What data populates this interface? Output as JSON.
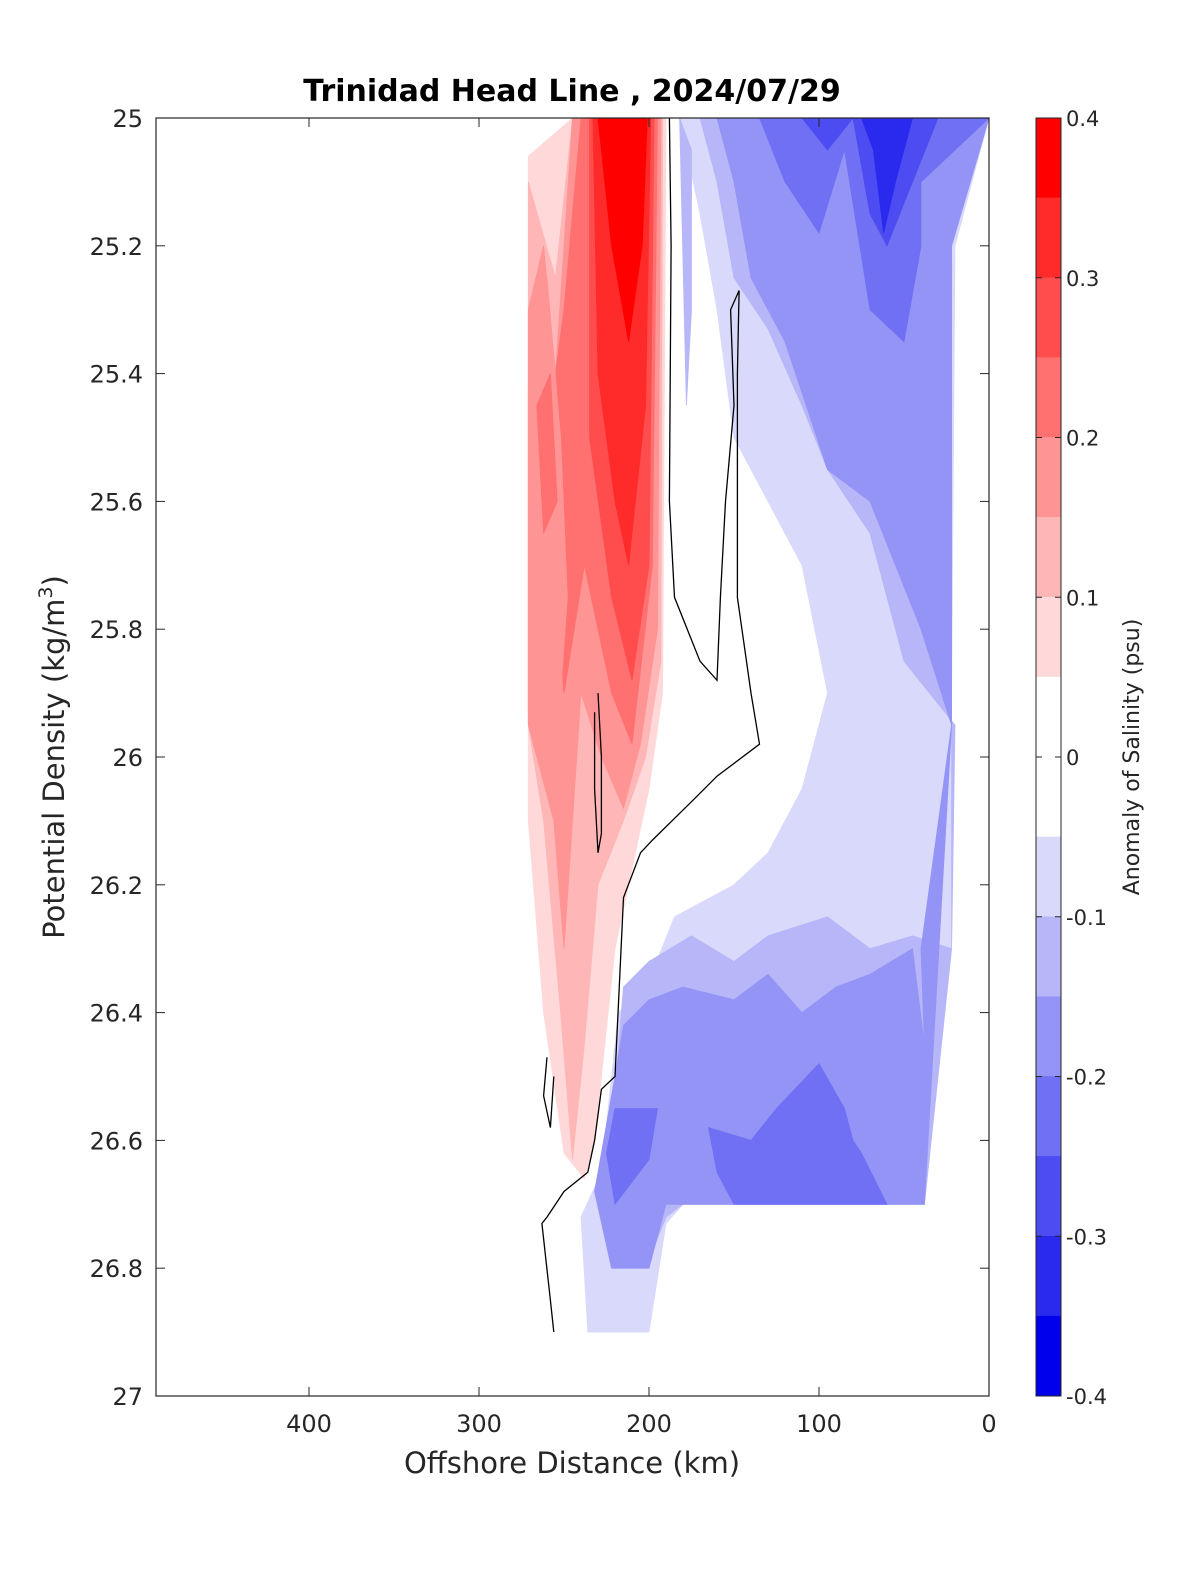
{
  "chart_data": {
    "type": "contour",
    "title": "Trinidad Head Line , 2024/07/29",
    "xlabel": "Offshore Distance (km)",
    "ylabel_main": "Potential Density (kg/m",
    "ylabel_sup": "3",
    "ylabel_close": ")",
    "xlim": [
      490,
      0
    ],
    "ylim": [
      25,
      27
    ],
    "x_reversed": true,
    "y_reversed": true,
    "x_ticks": [
      400,
      300,
      200,
      100,
      0
    ],
    "x_tick_labels": [
      "400",
      "300",
      "200",
      "100",
      "0"
    ],
    "y_ticks": [
      25,
      25.2,
      25.4,
      25.6,
      25.8,
      26,
      26.2,
      26.4,
      26.6,
      26.8,
      27
    ],
    "y_tick_labels": [
      "25",
      "25.2",
      "25.4",
      "25.6",
      "25.8",
      "26",
      "26.2",
      "26.4",
      "26.6",
      "26.8",
      "27"
    ],
    "colorbar": {
      "label": "Anomaly of Salinity (psu)",
      "range": [
        -0.4,
        0.4
      ],
      "tick_values": [
        0.4,
        0.3,
        0.2,
        0.1,
        0,
        -0.1,
        -0.2,
        -0.3,
        -0.4
      ],
      "tick_labels": [
        "0.4",
        "0.3",
        "0.2",
        "0.1",
        "0",
        "-0.1",
        "-0.2",
        "-0.3",
        "-0.4"
      ],
      "levels": [
        -0.4,
        -0.35,
        -0.3,
        -0.25,
        -0.2,
        -0.15,
        -0.1,
        -0.05,
        0.05,
        0.1,
        0.15,
        0.2,
        0.25,
        0.3,
        0.35,
        0.4
      ],
      "colors": [
        "#ff0000",
        "#ff2a2a",
        "#ff4c4c",
        "#ff7070",
        "#ff9494",
        "#ffb6b6",
        "#ffd9d9",
        "#ffffff",
        "#d9d9fb",
        "#b6b6f8",
        "#9494f6",
        "#7070f4",
        "#4c4cf2",
        "#2a2aef",
        "#0000ec"
      ]
    },
    "regions": [
      {
        "name": "salty-light",
        "level": 0.05,
        "color": "#ffd9d9",
        "points": [
          [
            271,
            25.06
          ],
          [
            245,
            25.0
          ],
          [
            200,
            25.0
          ],
          [
            190,
            25.0
          ],
          [
            192,
            25.9
          ],
          [
            200,
            26.05
          ],
          [
            220,
            26.3
          ],
          [
            232,
            26.6
          ],
          [
            238,
            26.66
          ],
          [
            250,
            26.62
          ],
          [
            262,
            26.4
          ],
          [
            271,
            26.1
          ]
        ]
      },
      {
        "name": "salty-0.10",
        "level": 0.1,
        "color": "#ffb6b6",
        "points": [
          [
            271,
            25.1
          ],
          [
            255,
            25.25
          ],
          [
            245,
            25.0
          ],
          [
            200,
            25.0
          ],
          [
            192,
            25.0
          ],
          [
            193,
            25.85
          ],
          [
            202,
            26.0
          ],
          [
            215,
            26.1
          ],
          [
            230,
            26.2
          ],
          [
            238,
            26.45
          ],
          [
            245,
            26.63
          ],
          [
            252,
            26.4
          ],
          [
            262,
            26.1
          ],
          [
            271,
            25.95
          ]
        ]
      },
      {
        "name": "salty-0.15",
        "level": 0.15,
        "color": "#ff9494",
        "points": [
          [
            271,
            25.3
          ],
          [
            262,
            25.2
          ],
          [
            255,
            25.4
          ],
          [
            245,
            25.0
          ],
          [
            200,
            25.0
          ],
          [
            193,
            25.0
          ],
          [
            195,
            25.8
          ],
          [
            205,
            25.98
          ],
          [
            215,
            26.08
          ],
          [
            228,
            26.0
          ],
          [
            240,
            25.9
          ],
          [
            250,
            26.3
          ],
          [
            256,
            26.1
          ],
          [
            271,
            25.95
          ]
        ]
      },
      {
        "name": "salty-0.20",
        "level": 0.2,
        "color": "#ff7070",
        "points": [
          [
            262,
            25.4
          ],
          [
            255,
            25.4
          ],
          [
            250,
            25.3
          ],
          [
            240,
            25.0
          ],
          [
            200,
            25.0
          ],
          [
            195,
            25.0
          ],
          [
            198,
            25.7
          ],
          [
            210,
            25.98
          ],
          [
            222,
            25.9
          ],
          [
            238,
            25.7
          ],
          [
            250,
            25.9
          ],
          [
            258,
            25.65
          ]
        ]
      },
      {
        "name": "salty-0.25",
        "level": 0.25,
        "color": "#ff4c4c",
        "points": [
          [
            235,
            25.0
          ],
          [
            197,
            25.0
          ],
          [
            200,
            25.7
          ],
          [
            210,
            25.88
          ],
          [
            222,
            25.75
          ],
          [
            235,
            25.5
          ]
        ]
      },
      {
        "name": "salty-0.30",
        "level": 0.3,
        "color": "#ff2a2a",
        "points": [
          [
            233,
            25.0
          ],
          [
            199,
            25.0
          ],
          [
            202,
            25.45
          ],
          [
            212,
            25.7
          ],
          [
            220,
            25.6
          ],
          [
            230,
            25.4
          ]
        ]
      },
      {
        "name": "salty-0.35",
        "level": 0.35,
        "color": "#ff0000",
        "points": [
          [
            230,
            25.0
          ],
          [
            201,
            25.0
          ],
          [
            204,
            25.2
          ],
          [
            212,
            25.35
          ],
          [
            222,
            25.2
          ]
        ]
      },
      {
        "name": "salty-left-core",
        "level": 0.2,
        "color": "#ff9494",
        "points": [
          [
            271,
            25.42
          ],
          [
            260,
            25.25
          ],
          [
            252,
            25.5
          ],
          [
            248,
            25.75
          ],
          [
            252,
            25.9
          ],
          [
            271,
            25.93
          ]
        ]
      },
      {
        "name": "salty-left-core-2",
        "level": 0.25,
        "color": "#ff7070",
        "points": [
          [
            266,
            25.45
          ],
          [
            258,
            25.4
          ],
          [
            254,
            25.6
          ],
          [
            262,
            25.65
          ]
        ]
      },
      {
        "name": "fresh-0.05",
        "level": -0.05,
        "color": "#d9d9fb",
        "points": [
          [
            182,
            25.0
          ],
          [
            0,
            25.0
          ],
          [
            20,
            25.2
          ],
          [
            22,
            25.9
          ],
          [
            22,
            26.3
          ],
          [
            38,
            26.7
          ],
          [
            180,
            26.7
          ],
          [
            190,
            26.73
          ],
          [
            200,
            26.9
          ],
          [
            236,
            26.9
          ],
          [
            240,
            26.72
          ],
          [
            228,
            26.65
          ],
          [
            218,
            26.4
          ],
          [
            200,
            26.35
          ],
          [
            185,
            26.25
          ],
          [
            150,
            26.2
          ],
          [
            130,
            26.15
          ],
          [
            110,
            26.05
          ],
          [
            95,
            25.9
          ],
          [
            110,
            25.7
          ],
          [
            130,
            25.6
          ],
          [
            150,
            25.5
          ],
          [
            160,
            25.3
          ],
          [
            170,
            25.15
          ]
        ]
      },
      {
        "name": "fresh-0.10",
        "level": -0.1,
        "color": "#b6b6f8",
        "points": [
          [
            170,
            25.0
          ],
          [
            0,
            25.0
          ],
          [
            22,
            25.2
          ],
          [
            22,
            25.95
          ],
          [
            22,
            26.3
          ],
          [
            38,
            26.7
          ],
          [
            180,
            26.7
          ],
          [
            190,
            26.72
          ],
          [
            202,
            26.8
          ],
          [
            222,
            26.8
          ],
          [
            232,
            26.68
          ],
          [
            220,
            26.52
          ],
          [
            215,
            26.36
          ],
          [
            200,
            26.32
          ],
          [
            175,
            26.28
          ],
          [
            150,
            26.32
          ],
          [
            130,
            26.28
          ],
          [
            95,
            26.25
          ],
          [
            70,
            26.3
          ],
          [
            45,
            26.28
          ],
          [
            22,
            26.3
          ],
          [
            20,
            25.95
          ],
          [
            50,
            25.85
          ],
          [
            70,
            25.65
          ],
          [
            95,
            25.55
          ],
          [
            110,
            25.45
          ],
          [
            130,
            25.33
          ],
          [
            150,
            25.25
          ],
          [
            160,
            25.1
          ]
        ]
      },
      {
        "name": "fresh-0.15",
        "level": -0.15,
        "color": "#9494f6",
        "points": [
          [
            160,
            25.0
          ],
          [
            0,
            25.0
          ],
          [
            22,
            25.2
          ],
          [
            22,
            25.95
          ],
          [
            38,
            26.7
          ],
          [
            190,
            26.7
          ],
          [
            200,
            26.8
          ],
          [
            222,
            26.8
          ],
          [
            232,
            26.68
          ],
          [
            220,
            26.5
          ],
          [
            215,
            26.42
          ],
          [
            200,
            26.38
          ],
          [
            180,
            26.36
          ],
          [
            150,
            26.38
          ],
          [
            130,
            26.34
          ],
          [
            110,
            26.4
          ],
          [
            90,
            26.36
          ],
          [
            70,
            26.34
          ],
          [
            45,
            26.3
          ],
          [
            38,
            26.45
          ],
          [
            40,
            26.3
          ],
          [
            22,
            25.95
          ],
          [
            40,
            25.8
          ],
          [
            70,
            25.6
          ],
          [
            95,
            25.55
          ],
          [
            120,
            25.35
          ],
          [
            140,
            25.25
          ],
          [
            150,
            25.1
          ]
        ]
      },
      {
        "name": "fresh-0.20",
        "level": -0.2,
        "color": "#7070f4",
        "points": [
          [
            220,
            26.55
          ],
          [
            207,
            26.55
          ],
          [
            195,
            26.55
          ],
          [
            200,
            26.63
          ],
          [
            220,
            26.7
          ],
          [
            225,
            26.62
          ]
        ]
      },
      {
        "name": "fresh-0.20-b",
        "level": -0.2,
        "color": "#7070f4",
        "points": [
          [
            140,
            26.6
          ],
          [
            125,
            26.55
          ],
          [
            100,
            26.48
          ],
          [
            85,
            26.55
          ],
          [
            80,
            26.6
          ],
          [
            75,
            26.62
          ],
          [
            60,
            26.7
          ],
          [
            150,
            26.7
          ],
          [
            160,
            26.65
          ],
          [
            165,
            26.58
          ]
        ]
      },
      {
        "name": "fresh-upper-0.20",
        "level": -0.2,
        "color": "#7070f4",
        "points": [
          [
            150,
            25.0
          ],
          [
            0,
            25.0
          ],
          [
            40,
            25.1
          ],
          [
            40,
            25.2
          ],
          [
            50,
            25.35
          ],
          [
            70,
            25.3
          ],
          [
            85,
            25.05
          ],
          [
            100,
            25.18
          ],
          [
            120,
            25.1
          ],
          [
            135,
            25.0
          ]
        ]
      },
      {
        "name": "fresh-upper-0.25",
        "level": -0.25,
        "color": "#4c4cf2",
        "points": [
          [
            130,
            25.0
          ],
          [
            30,
            25.0
          ],
          [
            45,
            25.1
          ],
          [
            60,
            25.2
          ],
          [
            70,
            25.15
          ],
          [
            80,
            25.0
          ],
          [
            95,
            25.05
          ],
          [
            110,
            25.0
          ]
        ]
      },
      {
        "name": "fresh-upper-0.30",
        "level": -0.3,
        "color": "#2a2aef",
        "points": [
          [
            75,
            25.0
          ],
          [
            45,
            25.0
          ],
          [
            55,
            25.1
          ],
          [
            62,
            25.18
          ],
          [
            68,
            25.05
          ]
        ]
      },
      {
        "name": "fresh-upper-light",
        "level": -0.1,
        "color": "#b6b6f8",
        "points": [
          [
            182,
            25.0
          ],
          [
            178,
            25.45
          ],
          [
            175,
            25.3
          ],
          [
            175,
            25.05
          ]
        ]
      }
    ],
    "zero_contours": [
      {
        "name": "main-zero-line",
        "points": [
          [
            188,
            25.0
          ],
          [
            187,
            25.2
          ],
          [
            188,
            25.6
          ],
          [
            185,
            25.75
          ],
          [
            170,
            25.85
          ],
          [
            160,
            25.88
          ],
          [
            158,
            25.75
          ],
          [
            155,
            25.6
          ],
          [
            150,
            25.45
          ],
          [
            152,
            25.3
          ],
          [
            147,
            25.27
          ],
          [
            148,
            25.4
          ],
          [
            148,
            25.75
          ],
          [
            140,
            25.9
          ],
          [
            135,
            25.98
          ],
          [
            160,
            26.03
          ],
          [
            175,
            26.07
          ],
          [
            198,
            26.13
          ],
          [
            205,
            26.15
          ],
          [
            215,
            26.22
          ],
          [
            220,
            26.5
          ],
          [
            228,
            26.52
          ],
          [
            232,
            26.6
          ],
          [
            236,
            26.65
          ],
          [
            250,
            26.68
          ],
          [
            260,
            26.72
          ],
          [
            263,
            26.73
          ],
          [
            258,
            26.85
          ],
          [
            256,
            26.9
          ]
        ]
      },
      {
        "name": "left-zero-loop",
        "points": [
          [
            230,
            25.9
          ],
          [
            228,
            26.0
          ],
          [
            228,
            26.12
          ],
          [
            230,
            26.15
          ],
          [
            232,
            26.05
          ],
          [
            232,
            25.93
          ]
        ]
      },
      {
        "name": "lower-zero-loop",
        "points": [
          [
            260,
            26.47
          ],
          [
            262,
            26.53
          ],
          [
            258,
            26.58
          ],
          [
            256,
            26.5
          ]
        ]
      }
    ]
  }
}
